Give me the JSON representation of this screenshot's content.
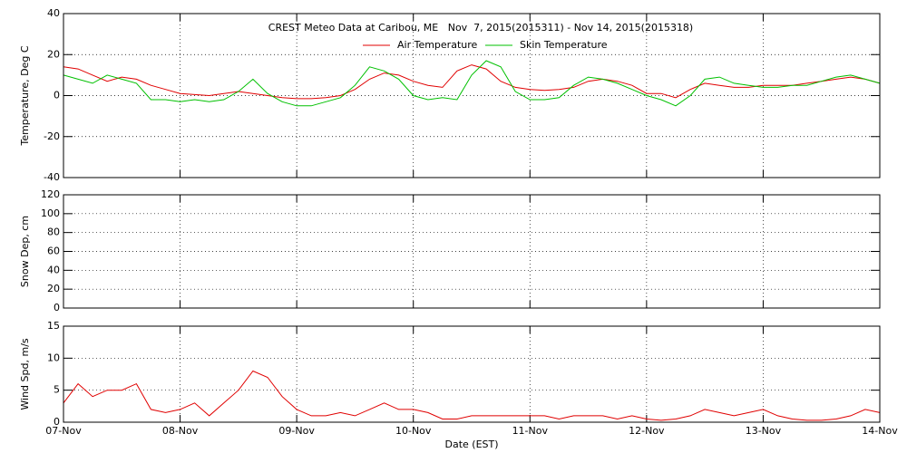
{
  "chart_data": [
    {
      "type": "line",
      "title": "CREST Meteo Data at Caribou, ME   Nov  7, 2015(2015311) - Nov 14, 2015(2015318)",
      "ylabel": "Temperature, Deg C",
      "ylim": [
        -40,
        40
      ],
      "yticks": [
        -40,
        -20,
        0,
        20,
        40
      ],
      "grid": true,
      "x": [
        0,
        0.125,
        0.25,
        0.375,
        0.5,
        0.625,
        0.75,
        0.875,
        1,
        1.125,
        1.25,
        1.375,
        1.5,
        1.625,
        1.75,
        1.875,
        2,
        2.125,
        2.25,
        2.375,
        2.5,
        2.625,
        2.75,
        2.875,
        3,
        3.125,
        3.25,
        3.375,
        3.5,
        3.625,
        3.75,
        3.875,
        4,
        4.125,
        4.25,
        4.375,
        4.5,
        4.625,
        4.75,
        4.875,
        5,
        5.125,
        5.25,
        5.375,
        5.5,
        5.625,
        5.75,
        5.875,
        6,
        6.125,
        6.25,
        6.375,
        6.5,
        6.625,
        6.75,
        6.875,
        7
      ],
      "series": [
        {
          "name": "Air Temperature",
          "color": "#e00000",
          "values": [
            14,
            13,
            10,
            7,
            9,
            8,
            5,
            3,
            1,
            0.5,
            0,
            1,
            2,
            1,
            0,
            -1,
            -1.5,
            -1.5,
            -1,
            0,
            3,
            8,
            11,
            10,
            7,
            5,
            4,
            12,
            15,
            13,
            7,
            4,
            3,
            2.5,
            3,
            4,
            7,
            8,
            7,
            5,
            1,
            1,
            -1,
            3,
            6,
            5,
            4,
            4,
            5,
            5,
            5,
            6,
            7,
            8,
            9,
            8,
            6
          ]
        },
        {
          "name": "Skin Temperature",
          "color": "#00c000",
          "values": [
            10,
            8,
            6,
            10,
            8,
            6,
            -2,
            -2,
            -3,
            -2,
            -3,
            -2,
            2,
            8,
            1,
            -3,
            -5,
            -5,
            -3,
            -1,
            5,
            14,
            12,
            8,
            0,
            -2,
            -1,
            -2,
            10,
            17,
            14,
            2,
            -2,
            -2,
            -1,
            5,
            9,
            8,
            6,
            3,
            0,
            -2,
            -5,
            0,
            8,
            9,
            6,
            5,
            4,
            4,
            5,
            5,
            7,
            9,
            10,
            8,
            6
          ]
        }
      ]
    },
    {
      "type": "line",
      "ylabel": "Snow Dep, cm",
      "ylim": [
        0,
        120
      ],
      "yticks": [
        0,
        20,
        40,
        60,
        80,
        100,
        120
      ],
      "grid": true,
      "series": []
    },
    {
      "type": "line",
      "ylabel": "Wind Spd, m/s",
      "xlabel": "Date (EST)",
      "xlim": [
        0,
        7
      ],
      "xticks": [
        {
          "value": 0,
          "label": "07-Nov"
        },
        {
          "value": 1,
          "label": "08-Nov"
        },
        {
          "value": 2,
          "label": "09-Nov"
        },
        {
          "value": 3,
          "label": "10-Nov"
        },
        {
          "value": 4,
          "label": "11-Nov"
        },
        {
          "value": 5,
          "label": "12-Nov"
        },
        {
          "value": 6,
          "label": "13-Nov"
        },
        {
          "value": 7,
          "label": "14-Nov"
        }
      ],
      "ylim": [
        0,
        15
      ],
      "yticks": [
        0,
        5,
        10,
        15
      ],
      "grid": true,
      "x": [
        0,
        0.125,
        0.25,
        0.375,
        0.5,
        0.625,
        0.75,
        0.875,
        1,
        1.125,
        1.25,
        1.375,
        1.5,
        1.625,
        1.75,
        1.875,
        2,
        2.125,
        2.25,
        2.375,
        2.5,
        2.625,
        2.75,
        2.875,
        3,
        3.125,
        3.25,
        3.375,
        3.5,
        3.625,
        3.75,
        3.875,
        4,
        4.125,
        4.25,
        4.375,
        4.5,
        4.625,
        4.75,
        4.875,
        5,
        5.125,
        5.25,
        5.375,
        5.5,
        5.625,
        5.75,
        5.875,
        6,
        6.125,
        6.25,
        6.375,
        6.5,
        6.625,
        6.75,
        6.875,
        7
      ],
      "series": [
        {
          "color": "#e00000",
          "values": [
            3,
            6,
            4,
            5,
            5,
            6,
            2,
            1.5,
            2,
            3,
            1,
            3,
            5,
            8,
            7,
            4,
            2,
            1,
            1,
            1.5,
            1,
            2,
            3,
            2,
            2,
            1.5,
            0.5,
            0.5,
            1,
            1,
            1,
            1,
            1,
            1,
            0.5,
            1,
            1,
            1,
            0.5,
            1,
            0.5,
            0.3,
            0.5,
            1,
            2,
            1.5,
            1,
            1.5,
            2,
            1,
            0.5,
            0.3,
            0.3,
            0.5,
            1,
            2,
            1.5
          ]
        }
      ]
    }
  ]
}
